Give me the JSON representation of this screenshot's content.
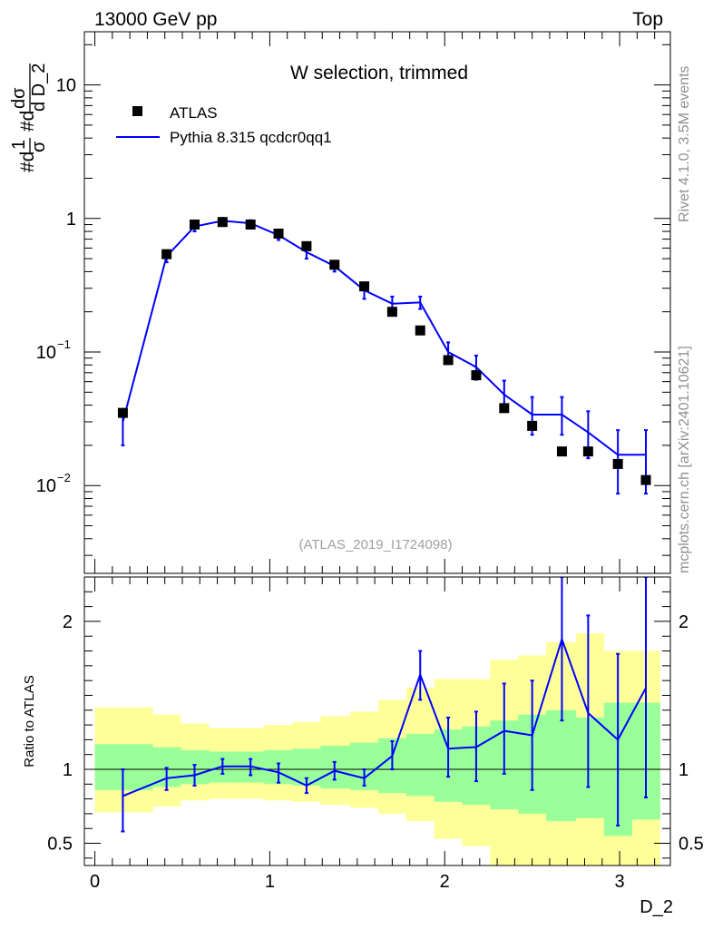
{
  "header": {
    "left": "13000 GeV pp",
    "right": "Top",
    "side_top": "Rivet 4.1.0,  3.5M events",
    "side_bottom": "mcplots.cern.ch [arXiv:2401.10621]"
  },
  "chart_data": [
    {
      "type": "scatter",
      "panel": "main",
      "title": "W selection, trimmed",
      "analysis_label": "(ATLAS_2019_I1724098)",
      "ylabel_parts": [
        "#d",
        "1",
        "σ",
        "#d",
        "dσ",
        "d D_2"
      ],
      "yscale": "log",
      "ylim": [
        0.0022,
        25
      ],
      "xlim": [
        -0.06,
        3.29
      ],
      "y_tick_labels": [
        {
          "value": 0.01,
          "base": "10",
          "exp": "−2"
        },
        {
          "value": 0.1,
          "base": "10",
          "exp": "−1"
        },
        {
          "value": 1,
          "base": "1",
          "exp": ""
        },
        {
          "value": 10,
          "base": "10",
          "exp": ""
        }
      ],
      "legend": [
        {
          "label": "ATLAS",
          "marker": "square",
          "color": "#000000"
        },
        {
          "label": "Pythia 8.315 qcdcr0qq1",
          "marker": "line",
          "color": "#0000ff"
        }
      ],
      "x": [
        0.16,
        0.41,
        0.57,
        0.73,
        0.89,
        1.05,
        1.21,
        1.37,
        1.54,
        1.7,
        1.86,
        2.02,
        2.18,
        2.34,
        2.5,
        2.67,
        2.82,
        2.99,
        3.15
      ],
      "series": [
        {
          "name": "ATLAS",
          "values": [
            0.035,
            0.54,
            0.9,
            0.94,
            0.9,
            0.77,
            0.62,
            0.45,
            0.31,
            0.2,
            0.145,
            0.087,
            0.067,
            0.038,
            0.028,
            0.018,
            0.018,
            0.0145,
            0.011
          ]
        },
        {
          "name": "Pythia 8.315 qcdcr0qq1",
          "values": [
            0.03,
            0.52,
            0.87,
            0.96,
            0.92,
            0.75,
            0.56,
            0.44,
            0.29,
            0.23,
            0.235,
            0.1,
            0.077,
            0.048,
            0.034,
            0.034,
            0.025,
            0.017,
            0.017
          ],
          "err_low": [
            0.02,
            0.47,
            0.8,
            0.91,
            0.86,
            0.69,
            0.5,
            0.4,
            0.25,
            0.2,
            0.21,
            0.083,
            0.062,
            0.037,
            0.024,
            0.024,
            0.016,
            0.0087,
            0.0087
          ],
          "err_high": [
            0.034,
            0.57,
            0.94,
            1.01,
            0.97,
            0.8,
            0.61,
            0.48,
            0.33,
            0.26,
            0.26,
            0.118,
            0.094,
            0.061,
            0.046,
            0.046,
            0.036,
            0.026,
            0.026
          ]
        }
      ]
    },
    {
      "type": "line",
      "panel": "ratio",
      "ylabel": "Ratio to ATLAS",
      "xlabel": "D_2",
      "ylim": [
        0.35,
        2.3
      ],
      "xlim": [
        -0.06,
        3.29
      ],
      "x_ticks": [
        0,
        1,
        2,
        3
      ],
      "x_tick_labels": [
        "0",
        "1",
        "2",
        "3"
      ],
      "y_ticks": [
        0.5,
        1,
        2
      ],
      "y_tick_labels": [
        "0.5",
        "1",
        "2"
      ],
      "band_edges": [
        0.0,
        0.33,
        0.49,
        0.65,
        0.81,
        0.97,
        1.13,
        1.29,
        1.46,
        1.62,
        1.78,
        1.94,
        2.1,
        2.26,
        2.42,
        2.58,
        2.75,
        2.91,
        3.07,
        3.23
      ],
      "yellow_band": {
        "low": [
          0.71,
          0.75,
          0.79,
          0.8,
          0.8,
          0.79,
          0.78,
          0.76,
          0.74,
          0.7,
          0.65,
          0.53,
          0.48,
          0.3,
          0.3,
          0.3,
          0.3,
          0.3,
          0.3
        ],
        "high": [
          1.42,
          1.37,
          1.31,
          1.28,
          1.28,
          1.3,
          1.32,
          1.36,
          1.39,
          1.47,
          1.55,
          1.61,
          1.61,
          1.74,
          1.77,
          1.86,
          1.92,
          1.8,
          1.8
        ]
      },
      "green_band": {
        "low": [
          0.86,
          0.88,
          0.9,
          0.91,
          0.91,
          0.9,
          0.89,
          0.87,
          0.86,
          0.84,
          0.82,
          0.78,
          0.76,
          0.73,
          0.7,
          0.65,
          0.67,
          0.55,
          0.66
        ],
        "high": [
          1.17,
          1.15,
          1.13,
          1.12,
          1.12,
          1.13,
          1.14,
          1.16,
          1.18,
          1.21,
          1.24,
          1.27,
          1.29,
          1.33,
          1.37,
          1.4,
          1.35,
          1.45,
          1.45
        ]
      },
      "series": [
        {
          "name": "Pythia 8.315 qcdcr0qq1 / ATLAS",
          "x": [
            0.16,
            0.41,
            0.57,
            0.73,
            0.89,
            1.05,
            1.21,
            1.37,
            1.54,
            1.7,
            1.86,
            2.02,
            2.18,
            2.34,
            2.5,
            2.67,
            2.82,
            2.99,
            3.15
          ],
          "values": [
            0.82,
            0.94,
            0.96,
            1.02,
            1.02,
            0.98,
            0.89,
            0.99,
            0.94,
            1.09,
            1.64,
            1.14,
            1.15,
            1.26,
            1.23,
            1.88,
            1.38,
            1.2,
            1.55
          ],
          "err_low": [
            0.58,
            0.86,
            0.89,
            0.97,
            0.96,
            0.91,
            0.84,
            0.93,
            0.89,
            1.0,
            1.47,
            0.95,
            0.92,
            0.97,
            0.86,
            1.33,
            0.88,
            0.62,
            0.81
          ],
          "err_high": [
            1.0,
            1.01,
            1.03,
            1.07,
            1.07,
            1.04,
            0.94,
            1.05,
            1.0,
            1.19,
            1.8,
            1.35,
            1.39,
            1.58,
            1.6,
            2.3,
            2.04,
            1.78,
            2.3
          ]
        }
      ]
    }
  ]
}
